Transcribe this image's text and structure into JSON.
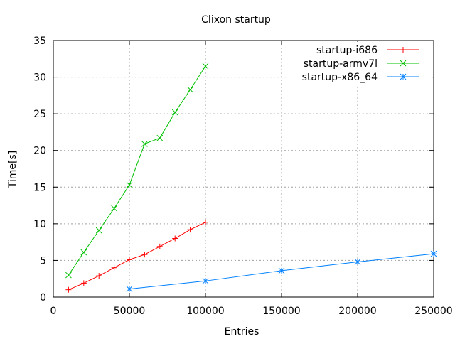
{
  "chart_data": {
    "type": "line",
    "title": "Clixon startup",
    "xlabel": "Entries",
    "ylabel": "Time[s]",
    "xlim": [
      0,
      250000
    ],
    "ylim": [
      0,
      35
    ],
    "xticks": [
      0,
      50000,
      100000,
      150000,
      200000,
      250000
    ],
    "yticks": [
      0,
      5,
      10,
      15,
      20,
      25,
      30,
      35
    ],
    "grid": true,
    "legend_position": "top-right",
    "series": [
      {
        "name": "startup-i686",
        "color": "#ff0000",
        "marker": "plus",
        "x": [
          10000,
          20000,
          30000,
          40000,
          50000,
          60000,
          70000,
          80000,
          90000,
          100000
        ],
        "y": [
          1.0,
          1.9,
          2.9,
          4.0,
          5.1,
          5.8,
          6.9,
          8.0,
          9.2,
          10.2
        ]
      },
      {
        "name": "startup-armv7l",
        "color": "#00c000",
        "marker": "cross",
        "x": [
          10000,
          20000,
          30000,
          40000,
          50000,
          60000,
          70000,
          80000,
          90000,
          100000
        ],
        "y": [
          3.0,
          6.1,
          9.1,
          12.1,
          15.3,
          20.9,
          21.7,
          25.2,
          28.3,
          31.5
        ]
      },
      {
        "name": "startup-x86_64",
        "color": "#0080ff",
        "marker": "star",
        "x": [
          50000,
          100000,
          150000,
          200000,
          250000
        ],
        "y": [
          1.1,
          2.2,
          3.6,
          4.8,
          5.9
        ]
      }
    ]
  }
}
